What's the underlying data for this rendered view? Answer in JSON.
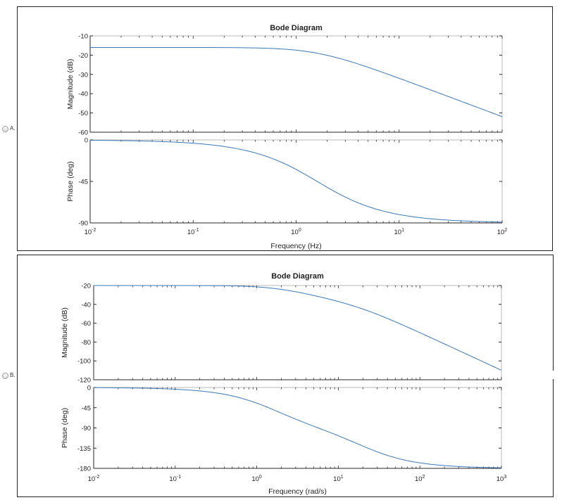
{
  "options": [
    {
      "label": "A."
    },
    {
      "label": "B."
    }
  ],
  "colors": {
    "line": "#3a78b8",
    "axis": "#262626",
    "grid_tick": "#262626"
  },
  "chart_data": [
    {
      "type": "line",
      "title": "Bode Diagram",
      "xlabel": "Frequency  (Hz)",
      "x_scale": "log",
      "xlim": [
        0.01,
        100
      ],
      "x_tick_values": [
        0.01,
        0.1,
        1,
        10,
        100
      ],
      "x_tick_labels": [
        {
          "base": "10",
          "exp": "-2"
        },
        {
          "base": "10",
          "exp": "-1"
        },
        {
          "base": "10",
          "exp": "0"
        },
        {
          "base": "10",
          "exp": "1"
        },
        {
          "base": "10",
          "exp": "2"
        }
      ],
      "magnitude": {
        "ylabel": "Magnitude (dB)",
        "ylim": [
          -60,
          -10
        ],
        "y_ticks": [
          -10,
          -20,
          -30,
          -40,
          -50,
          -60
        ],
        "y_tick_labels": [
          "-10",
          "-20",
          "-30",
          "-40",
          "-50",
          "-60"
        ],
        "series": [
          {
            "gain_db": -16,
            "poles": [
              1.6
            ]
          }
        ]
      },
      "phase": {
        "ylabel": "Phase (deg)",
        "ylim": [
          -90,
          0
        ],
        "y_ticks": [
          0,
          -45,
          -90
        ],
        "y_tick_labels": [
          "0",
          "-45",
          "-90"
        ],
        "series": [
          {
            "poles": [
              1.6
            ]
          }
        ]
      }
    },
    {
      "type": "line",
      "title": "Bode Diagram",
      "xlabel": "Frequency (rad/s)",
      "x_scale": "log",
      "xlim": [
        0.01,
        1000
      ],
      "x_tick_values": [
        0.01,
        0.1,
        1,
        10,
        100,
        1000
      ],
      "x_tick_labels": [
        {
          "base": "10",
          "exp": "-2"
        },
        {
          "base": "10",
          "exp": "-1"
        },
        {
          "base": "10",
          "exp": "0"
        },
        {
          "base": "10",
          "exp": "1"
        },
        {
          "base": "10",
          "exp": "2"
        },
        {
          "base": "10",
          "exp": "3"
        }
      ],
      "magnitude": {
        "ylabel": "Magnitude (dB)",
        "ylim": [
          -120,
          -20
        ],
        "y_ticks": [
          -20,
          -40,
          -60,
          -80,
          -100,
          -120
        ],
        "y_tick_labels": [
          "-20",
          "-40",
          "-60",
          "-80",
          "-100",
          "-120"
        ],
        "series": [
          {
            "gain_db": -20,
            "poles": [
              1.6,
              20
            ]
          }
        ]
      },
      "phase": {
        "ylabel": "Phase (deg)",
        "ylim": [
          -180,
          0
        ],
        "y_ticks": [
          0,
          -45,
          -90,
          -135,
          -180
        ],
        "y_tick_labels": [
          "0",
          "-45",
          "-90",
          "-135",
          "-180"
        ],
        "series": [
          {
            "poles": [
              1.6,
              20
            ]
          }
        ]
      }
    }
  ]
}
